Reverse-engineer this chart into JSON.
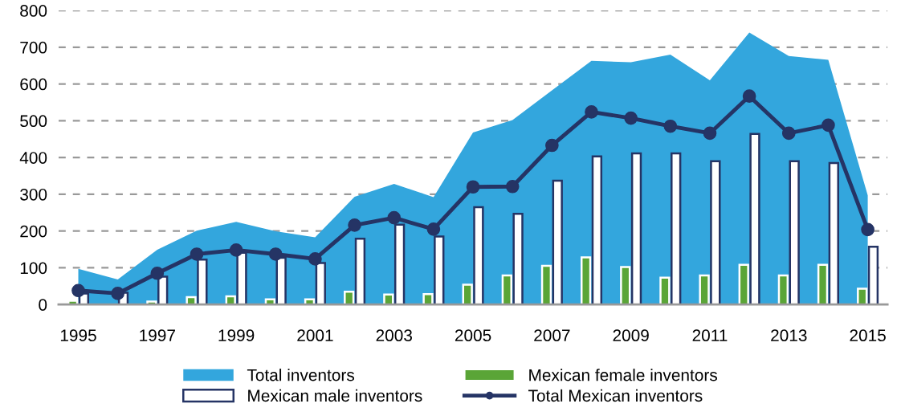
{
  "chart_data": {
    "type": "bar",
    "categories": [
      "1995",
      null,
      "1997",
      null,
      "1999",
      null,
      "2001",
      null,
      "2003",
      null,
      "2005",
      null,
      "2007",
      null,
      "2009",
      null,
      "2011",
      null,
      "2013",
      null,
      "2015"
    ],
    "series": [
      {
        "name": "Total inventors",
        "type": "area",
        "color": "#33a6dd",
        "values": [
          97,
          68,
          149,
          201,
          225,
          199,
          183,
          293,
          328,
          292,
          468,
          502,
          583,
          663,
          659,
          680,
          610,
          740,
          676,
          666,
          297
        ]
      },
      {
        "name": "Mexican female inventors",
        "color": "#5aa537",
        "values": [
          10,
          null,
          8,
          20,
          22,
          14,
          14,
          35,
          27,
          28,
          54,
          79,
          105,
          128,
          102,
          73,
          79,
          108,
          79,
          108,
          43
        ]
      },
      {
        "name": "Mexican male inventors",
        "color": "#ffffff",
        "values": [
          30,
          32,
          76,
          122,
          141,
          127,
          113,
          179,
          217,
          185,
          265,
          247,
          337,
          403,
          411,
          411,
          390,
          464,
          390,
          385,
          157
        ]
      },
      {
        "name": "Total Mexican inventors",
        "type": "line",
        "marker": "circle",
        "color": "#253465",
        "values": [
          38,
          30,
          85,
          137,
          148,
          137,
          124,
          216,
          236,
          205,
          320,
          321,
          433,
          524,
          507,
          485,
          466,
          567,
          466,
          488,
          204
        ]
      }
    ],
    "ylim": [
      0,
      800
    ],
    "yticks": [
      0,
      100,
      200,
      300,
      400,
      500,
      600,
      700,
      800
    ],
    "grid": "y",
    "legend": "bottom",
    "line_style": "solid"
  }
}
